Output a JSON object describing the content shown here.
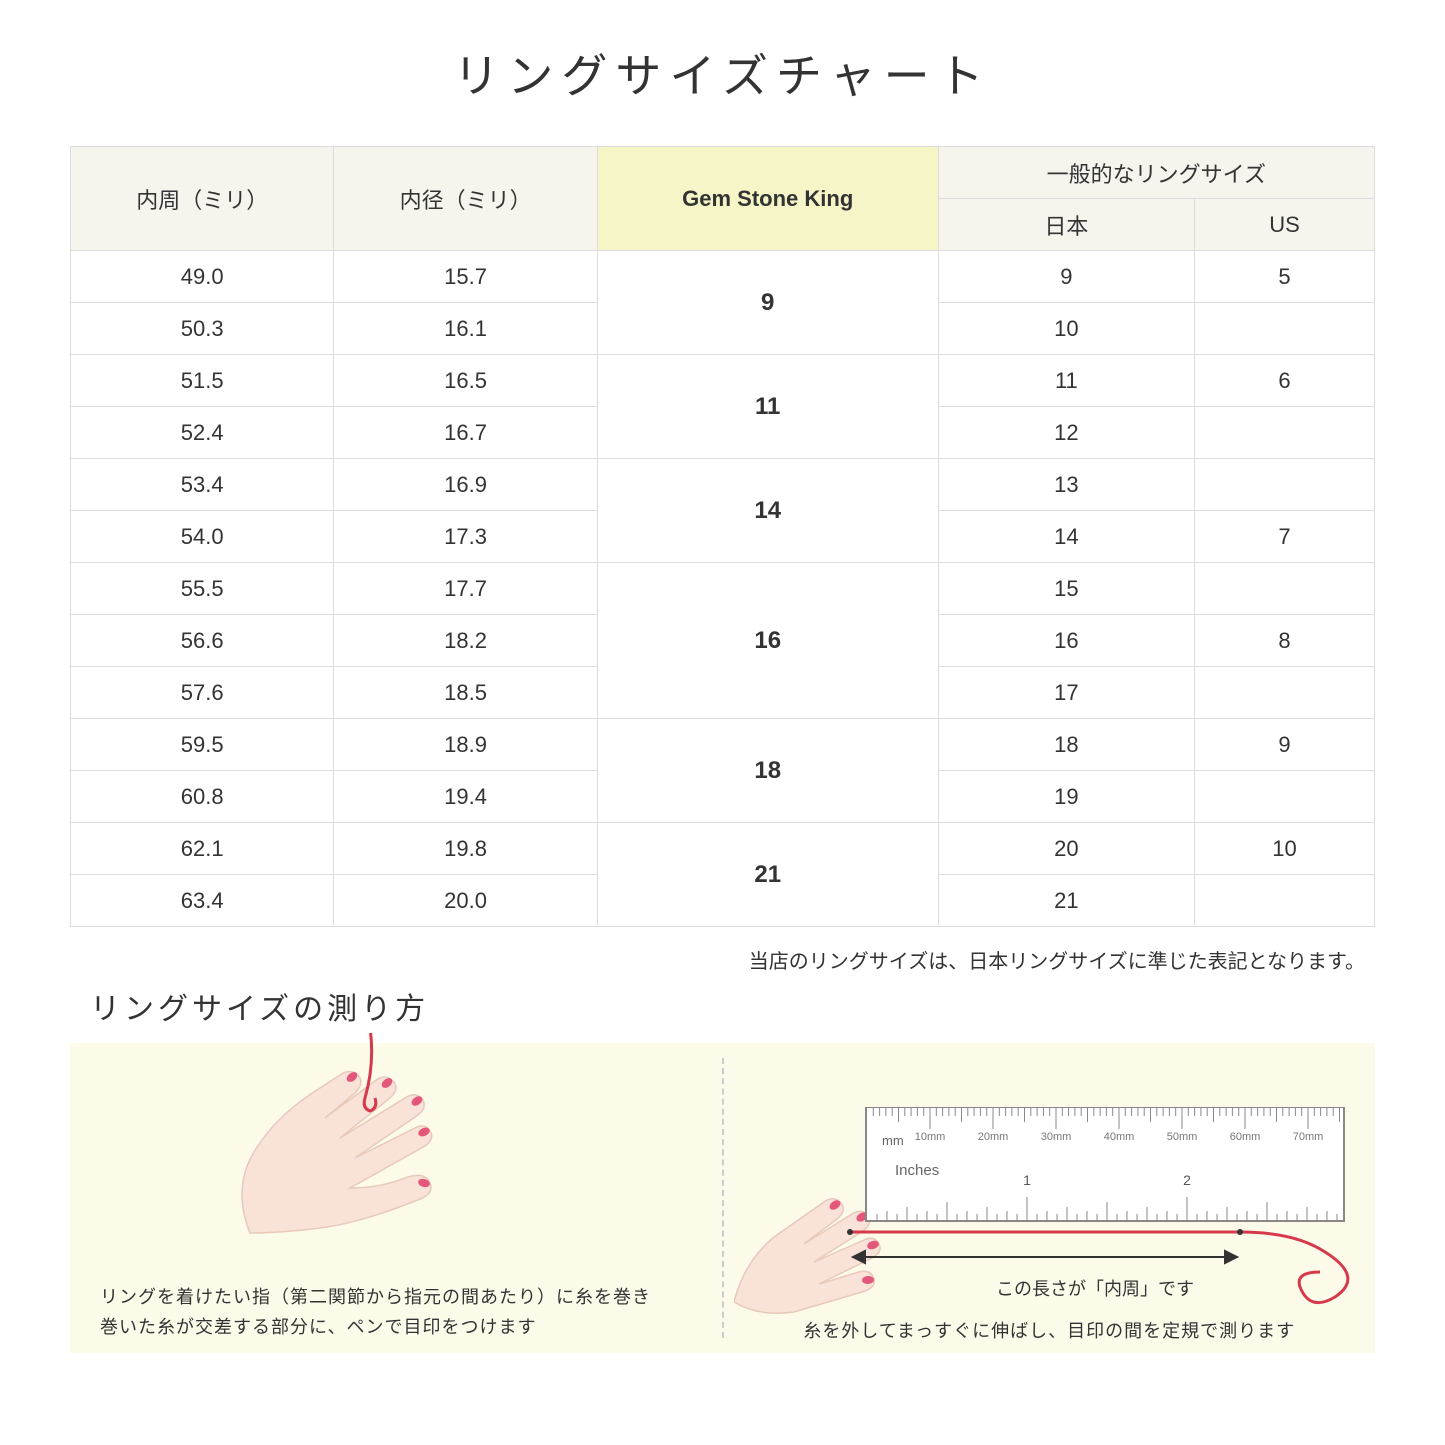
{
  "title": "リングサイズチャート",
  "table": {
    "headers": {
      "circumference": "内周（ミリ）",
      "diameter": "内径（ミリ）",
      "gsk": "Gem Stone King",
      "general": "一般的なリングサイズ",
      "japan": "日本",
      "us": "US"
    },
    "groups": [
      {
        "gsk": "9",
        "rows": [
          {
            "c": "49.0",
            "d": "15.7",
            "jp": "9",
            "us": "5"
          },
          {
            "c": "50.3",
            "d": "16.1",
            "jp": "10",
            "us": ""
          }
        ]
      },
      {
        "gsk": "11",
        "rows": [
          {
            "c": "51.5",
            "d": "16.5",
            "jp": "11",
            "us": "6"
          },
          {
            "c": "52.4",
            "d": "16.7",
            "jp": "12",
            "us": ""
          }
        ]
      },
      {
        "gsk": "14",
        "rows": [
          {
            "c": "53.4",
            "d": "16.9",
            "jp": "13",
            "us": ""
          },
          {
            "c": "54.0",
            "d": "17.3",
            "jp": "14",
            "us": "7"
          }
        ]
      },
      {
        "gsk": "16",
        "rows": [
          {
            "c": "55.5",
            "d": "17.7",
            "jp": "15",
            "us": ""
          },
          {
            "c": "56.6",
            "d": "18.2",
            "jp": "16",
            "us": "8"
          },
          {
            "c": "57.6",
            "d": "18.5",
            "jp": "17",
            "us": ""
          }
        ]
      },
      {
        "gsk": "18",
        "rows": [
          {
            "c": "59.5",
            "d": "18.9",
            "jp": "18",
            "us": "9"
          },
          {
            "c": "60.8",
            "d": "19.4",
            "jp": "19",
            "us": ""
          }
        ]
      },
      {
        "gsk": "21",
        "rows": [
          {
            "c": "62.1",
            "d": "19.8",
            "jp": "20",
            "us": "10"
          },
          {
            "c": "63.4",
            "d": "20.0",
            "jp": "21",
            "us": ""
          }
        ]
      }
    ]
  },
  "note": "当店のリングサイズは、日本リングサイズに準じた表記となります。",
  "measure": {
    "title": "リングサイズの測り方",
    "left_caption": "リングを着けたい指（第二関節から指元の間あたり）に糸を巻き\n巻いた糸が交差する部分に、ペンで目印をつけます",
    "right_caption": "糸を外してまっすぐに伸ばし、目印の間を定規で測ります",
    "ruler_mm_label": "mm",
    "ruler_in_label": "Inches",
    "ruler_mm_ticks": [
      "10mm",
      "20mm",
      "30mm",
      "40mm",
      "50mm",
      "60mm",
      "70mm"
    ],
    "length_label": "この長さが「内周」です"
  },
  "colors": {
    "header_bg": "#f5f5ee",
    "highlight_bg": "#f5f5c8",
    "border": "#dcdcdc",
    "illus_bg": "#fcfbea",
    "hand_fill": "#f9e3d9",
    "hand_stroke": "#e8c9ba",
    "nail": "#e5577a",
    "thread": "#d63a4a"
  }
}
